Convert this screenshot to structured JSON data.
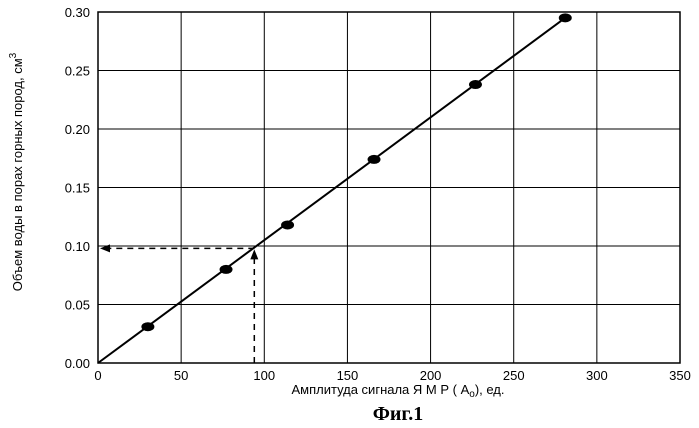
{
  "chart_data": {
    "type": "scatter",
    "caption": "Фиг.1",
    "xlabel_main": "Амплитуда сигнала Я М Р ( А",
    "xlabel_sub": "о",
    "xlabel_tail": "), ед.",
    "ylabel_main": "Объем воды в порах горных пород, см",
    "ylabel_sup": "3",
    "xlim": [
      0,
      350
    ],
    "ylim": [
      0,
      0.3
    ],
    "xticks": [
      "0",
      "50",
      "100",
      "150",
      "200",
      "250",
      "300",
      "350"
    ],
    "yticks": [
      "0.00",
      "0.05",
      "0.10",
      "0.15",
      "0.20",
      "0.25",
      "0.30"
    ],
    "grid": true,
    "series": [
      {
        "points": [
          {
            "x": 30,
            "y": 0.031
          },
          {
            "x": 77,
            "y": 0.08
          },
          {
            "x": 114,
            "y": 0.118
          },
          {
            "x": 166,
            "y": 0.174
          },
          {
            "x": 227,
            "y": 0.238
          },
          {
            "x": 281,
            "y": 0.295
          }
        ]
      }
    ],
    "fit_line": {
      "x0": 0,
      "y0": 0,
      "x1": 281,
      "y1": 0.295
    },
    "annotation": {
      "x": 94,
      "y": 0.098
    }
  }
}
